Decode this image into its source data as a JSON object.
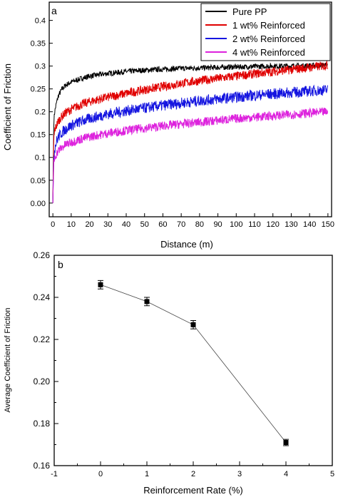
{
  "chart_data": [
    {
      "type": "line",
      "panel_label": "a",
      "xlabel": "Distance (m)",
      "ylabel": "Coefficient of Friction",
      "xlim": [
        -2,
        152
      ],
      "ylim": [
        -0.03,
        0.44
      ],
      "x_ticks": [
        "0",
        "10",
        "20",
        "30",
        "40",
        "50",
        "60",
        "70",
        "80",
        "90",
        "100",
        "110",
        "120",
        "130",
        "140",
        "150"
      ],
      "y_ticks": [
        "0.00",
        "0.05",
        "0.1",
        "0.15",
        "0.2",
        "0.25",
        "0.3",
        "0.35",
        "0.4"
      ],
      "legend_position": "top-right",
      "series": [
        {
          "name": "Pure PP",
          "color": "#000000",
          "x": [
            0,
            0.5,
            1,
            2,
            3,
            5,
            7,
            10,
            15,
            20,
            30,
            40,
            50,
            60,
            70,
            80,
            90,
            100,
            110,
            120,
            130,
            140,
            150
          ],
          "y": [
            0,
            0.18,
            0.2,
            0.22,
            0.235,
            0.25,
            0.258,
            0.265,
            0.272,
            0.278,
            0.284,
            0.288,
            0.291,
            0.293,
            0.295,
            0.296,
            0.297,
            0.298,
            0.299,
            0.3,
            0.3,
            0.301,
            0.302
          ]
        },
        {
          "name": "1 wt% Reinforced",
          "color": "#e00000",
          "x": [
            0,
            0.5,
            1,
            2,
            3,
            5,
            7,
            10,
            15,
            20,
            30,
            40,
            50,
            60,
            70,
            80,
            90,
            100,
            110,
            120,
            130,
            140,
            150
          ],
          "y": [
            0,
            0.14,
            0.16,
            0.17,
            0.18,
            0.19,
            0.198,
            0.205,
            0.215,
            0.222,
            0.232,
            0.24,
            0.248,
            0.255,
            0.262,
            0.268,
            0.273,
            0.278,
            0.283,
            0.288,
            0.292,
            0.297,
            0.302
          ]
        },
        {
          "name": "2 wt% Reinforced",
          "color": "#1515e0",
          "x": [
            0,
            0.5,
            1,
            2,
            3,
            5,
            7,
            10,
            15,
            20,
            30,
            40,
            50,
            60,
            70,
            80,
            90,
            100,
            110,
            120,
            130,
            140,
            150
          ],
          "y": [
            0,
            0.1,
            0.12,
            0.135,
            0.145,
            0.155,
            0.162,
            0.17,
            0.178,
            0.185,
            0.195,
            0.202,
            0.208,
            0.214,
            0.219,
            0.224,
            0.228,
            0.232,
            0.236,
            0.239,
            0.242,
            0.245,
            0.248
          ]
        },
        {
          "name": "4 wt% Reinforced",
          "color": "#dd22dd",
          "x": [
            0,
            0.5,
            1,
            2,
            3,
            5,
            7,
            10,
            15,
            20,
            30,
            40,
            50,
            60,
            70,
            80,
            90,
            100,
            110,
            120,
            130,
            140,
            150
          ],
          "y": [
            0,
            0.085,
            0.1,
            0.108,
            0.115,
            0.122,
            0.128,
            0.133,
            0.14,
            0.145,
            0.153,
            0.159,
            0.164,
            0.169,
            0.173,
            0.177,
            0.181,
            0.185,
            0.188,
            0.191,
            0.194,
            0.197,
            0.2
          ]
        }
      ]
    },
    {
      "type": "line",
      "panel_label": "b",
      "xlabel": "Reinforcement Rate (%)",
      "ylabel": "Average Coefficient of Friction",
      "xlim": [
        -1,
        5
      ],
      "ylim": [
        0.16,
        0.26
      ],
      "x_ticks": [
        "-1",
        "0",
        "1",
        "2",
        "3",
        "4",
        "5"
      ],
      "y_ticks": [
        "0.16",
        "0.18",
        "0.20",
        "0.22",
        "0.24",
        "0.26"
      ],
      "series": [
        {
          "marker": "square",
          "color": "#000000",
          "x": [
            0,
            1,
            2,
            4
          ],
          "y": [
            0.246,
            0.238,
            0.227,
            0.171
          ],
          "error": [
            0.002,
            0.002,
            0.002,
            0.0015
          ]
        }
      ]
    }
  ]
}
